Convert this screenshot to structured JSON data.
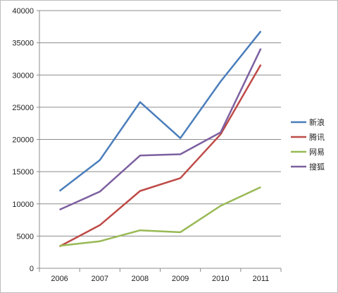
{
  "chart_data": {
    "type": "line",
    "x": [
      "2006",
      "2007",
      "2008",
      "2009",
      "2010",
      "2011"
    ],
    "series": [
      {
        "name": "新浪",
        "color": "#4a7ebb",
        "values": [
          12000,
          16800,
          25800,
          20200,
          29000,
          36800
        ]
      },
      {
        "name": "腾讯",
        "color": "#be4b48",
        "values": [
          3400,
          6700,
          12000,
          14000,
          20800,
          31600
        ]
      },
      {
        "name": "网易",
        "color": "#98b954",
        "values": [
          3500,
          4200,
          5900,
          5600,
          9700,
          12600
        ]
      },
      {
        "name": "搜狐",
        "color": "#7d60a0",
        "values": [
          9100,
          11900,
          17500,
          17700,
          21100,
          34100
        ]
      }
    ],
    "ylim": [
      0,
      40000
    ],
    "yticks": [
      "0",
      "5000",
      "10000",
      "15000",
      "20000",
      "25000",
      "30000",
      "35000",
      "40000"
    ],
    "grid": true,
    "legend_position": "right"
  }
}
